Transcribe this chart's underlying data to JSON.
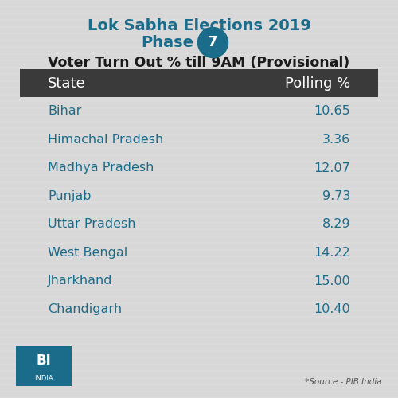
{
  "title_line1": "Lok Sabha Elections 2019",
  "title_line2": "Phase",
  "phase_number": "7",
  "subtitle": "Voter Turn Out % till 9AM (Provisional)",
  "col1_header": "State",
  "col2_header": "Polling %",
  "states": [
    "Bihar",
    "Himachal Pradesh",
    "Madhya Pradesh",
    "Punjab",
    "Uttar Pradesh",
    "West Bengal",
    "Jharkhand",
    "Chandigarh"
  ],
  "values": [
    "10.65",
    "3.36",
    "12.07",
    "9.73",
    "8.29",
    "14.22",
    "15.00",
    "10.40"
  ],
  "title_color": "#1b6c8a",
  "subtitle_color": "#1a1a1a",
  "header_bg_color": "#3a3a3a",
  "header_text_color": "#ffffff",
  "data_text_color": "#1b6c8a",
  "bg_color": "#d8d8d8",
  "source_text": "*Source - PIB India",
  "bi_box_color": "#1b6c8a",
  "bi_text": "BI",
  "india_text": "INDIA"
}
